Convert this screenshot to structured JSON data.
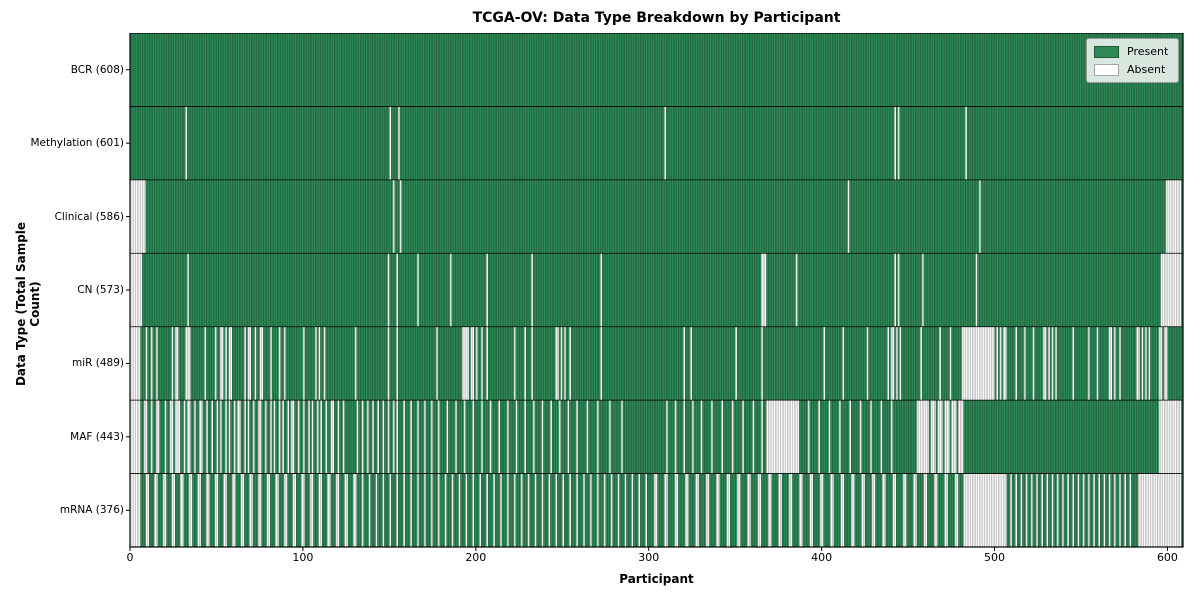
{
  "figure": {
    "title": "TCGA-OV: Data Type Breakdown by Participant",
    "xlabel": "Participant",
    "ylabel": "Data Type (Total Sample Count)"
  },
  "legend": {
    "present_label": "Present",
    "absent_label": "Absent"
  },
  "colors": {
    "present": "#2e8b57",
    "absent": "#ffffff",
    "bar_edge": "rgba(0,0,0,0.40)",
    "separator": "#000000",
    "frame": "#000000",
    "legend_bg": "rgba(255,255,255,0.82)",
    "legend_border": "#999999"
  },
  "chart_data": {
    "type": "heatmap",
    "title": "TCGA-OV: Data Type Breakdown by Participant",
    "xlabel": "Participant",
    "ylabel": "Data Type (Total Sample Count)",
    "legend": [
      "Present",
      "Absent"
    ],
    "legend_position": "upper right",
    "grid": false,
    "n_participants": 608,
    "xlim": [
      0,
      609
    ],
    "x_ticks": [
      0,
      100,
      200,
      300,
      400,
      500,
      600
    ],
    "rows": [
      {
        "name": "BCR",
        "count": 608,
        "label": "BCR (608)",
        "absent": []
      },
      {
        "name": "Methylation",
        "count": 601,
        "label": "Methylation (601)",
        "absent": [
          32,
          150,
          155,
          309,
          442,
          444,
          483
        ]
      },
      {
        "name": "Clinical",
        "count": 586,
        "label": "Clinical (586)",
        "absent": [
          [
            0,
            8
          ],
          152,
          156,
          415,
          491,
          [
            599,
            607
          ]
        ]
      },
      {
        "name": "CN",
        "count": 573,
        "label": "CN (573)",
        "absent": [
          [
            0,
            6
          ],
          33,
          149,
          154,
          166,
          185,
          206,
          232,
          272,
          [
            365,
            367
          ],
          385,
          442,
          444,
          458,
          489,
          [
            596,
            607
          ]
        ]
      },
      {
        "name": "miR",
        "count": 489,
        "label": "miR (489)",
        "absent": [
          [
            0,
            5
          ],
          9,
          12,
          15,
          24,
          [
            26,
            27
          ],
          [
            32,
            34
          ],
          43,
          49,
          [
            52,
            53
          ],
          55,
          [
            57,
            58
          ],
          66,
          [
            68,
            69
          ],
          72,
          [
            75,
            76
          ],
          81,
          86,
          89,
          100,
          107,
          109,
          112,
          130,
          149,
          154,
          177,
          [
            192,
            195
          ],
          [
            197,
            198
          ],
          200,
          203,
          206,
          222,
          228,
          232,
          [
            246,
            247
          ],
          249,
          251,
          254,
          272,
          320,
          324,
          350,
          365,
          401,
          412,
          426,
          438,
          [
            440,
            441
          ],
          443,
          445,
          457,
          468,
          474,
          [
            481,
            499
          ],
          501,
          503,
          [
            505,
            506
          ],
          512,
          517,
          522,
          [
            528,
            529
          ],
          531,
          533,
          535,
          545,
          554,
          559,
          [
            566,
            567
          ],
          569,
          572,
          [
            582,
            583
          ],
          585,
          587,
          589,
          [
            595,
            596
          ],
          [
            598,
            599
          ]
        ]
      },
      {
        "name": "MAF",
        "count": 443,
        "label": "MAF (443)",
        "absent": [
          [
            0,
            5
          ],
          [
            8,
            9
          ],
          12,
          [
            15,
            16
          ],
          20,
          [
            23,
            24
          ],
          [
            26,
            28
          ],
          31,
          [
            33,
            34
          ],
          37,
          [
            40,
            41
          ],
          44,
          47,
          50,
          52,
          55,
          57,
          60,
          [
            62,
            63
          ],
          66,
          68,
          71,
          [
            74,
            75
          ],
          78,
          81,
          83,
          86,
          88,
          91,
          [
            93,
            94
          ],
          97,
          100,
          103,
          105,
          108,
          110,
          113,
          [
            116,
            117
          ],
          120,
          123,
          131,
          134,
          137,
          140,
          143,
          146,
          149,
          152,
          154,
          158,
          162,
          166,
          170,
          174,
          178,
          183,
          188,
          193,
          198,
          203,
          208,
          213,
          218,
          223,
          228,
          233,
          238,
          243,
          248,
          253,
          258,
          264,
          270,
          277,
          284,
          310,
          315,
          320,
          325,
          330,
          336,
          342,
          348,
          354,
          360,
          365,
          [
            368,
            386
          ],
          392,
          398,
          404,
          410,
          416,
          422,
          428,
          434,
          440,
          [
            455,
            461
          ],
          [
            463,
            465
          ],
          [
            467,
            469
          ],
          [
            471,
            473
          ],
          [
            475,
            477
          ],
          [
            479,
            481
          ],
          [
            595,
            607
          ]
        ]
      },
      {
        "name": "mRNA",
        "count": 376,
        "label": "mRNA (376)",
        "absent": [
          [
            0,
            5
          ],
          [
            9,
            10
          ],
          [
            14,
            15
          ],
          [
            19,
            20
          ],
          [
            24,
            25
          ],
          [
            29,
            30
          ],
          [
            34,
            35
          ],
          [
            39,
            40
          ],
          [
            44,
            45
          ],
          [
            49,
            50
          ],
          [
            54,
            55
          ],
          [
            59,
            60
          ],
          [
            64,
            65
          ],
          [
            69,
            70
          ],
          [
            74,
            75
          ],
          [
            79,
            80
          ],
          [
            84,
            85
          ],
          [
            89,
            90
          ],
          [
            94,
            95
          ],
          [
            99,
            100
          ],
          [
            104,
            105
          ],
          [
            109,
            110
          ],
          [
            114,
            115
          ],
          [
            119,
            120
          ],
          [
            124,
            125
          ],
          [
            129,
            130
          ],
          134,
          138,
          142,
          146,
          150,
          154,
          158,
          162,
          166,
          170,
          174,
          178,
          182,
          186,
          190,
          194,
          198,
          202,
          206,
          210,
          214,
          218,
          222,
          226,
          230,
          234,
          238,
          242,
          246,
          250,
          254,
          258,
          262,
          266,
          270,
          274,
          278,
          282,
          286,
          290,
          294,
          298,
          [
            303,
            304
          ],
          [
            309,
            310
          ],
          [
            315,
            316
          ],
          [
            321,
            322
          ],
          [
            327,
            328
          ],
          [
            333,
            334
          ],
          [
            339,
            340
          ],
          [
            345,
            346
          ],
          [
            351,
            352
          ],
          [
            357,
            358
          ],
          [
            363,
            364
          ],
          [
            369,
            370
          ],
          [
            375,
            376
          ],
          [
            381,
            382
          ],
          [
            387,
            388
          ],
          [
            393,
            394
          ],
          [
            399,
            400
          ],
          [
            405,
            406
          ],
          [
            411,
            412
          ],
          [
            417,
            418
          ],
          [
            423,
            424
          ],
          [
            429,
            430
          ],
          [
            435,
            436
          ],
          [
            441,
            442
          ],
          [
            447,
            448
          ],
          [
            453,
            454
          ],
          [
            459,
            460
          ],
          [
            465,
            466
          ],
          [
            471,
            472
          ],
          [
            477,
            478
          ],
          [
            482,
            505
          ],
          506,
          509,
          512,
          515,
          518,
          521,
          524,
          527,
          530,
          533,
          536,
          539,
          542,
          545,
          548,
          551,
          554,
          557,
          560,
          563,
          566,
          569,
          572,
          575,
          578,
          [
            583,
            607
          ]
        ]
      }
    ]
  }
}
